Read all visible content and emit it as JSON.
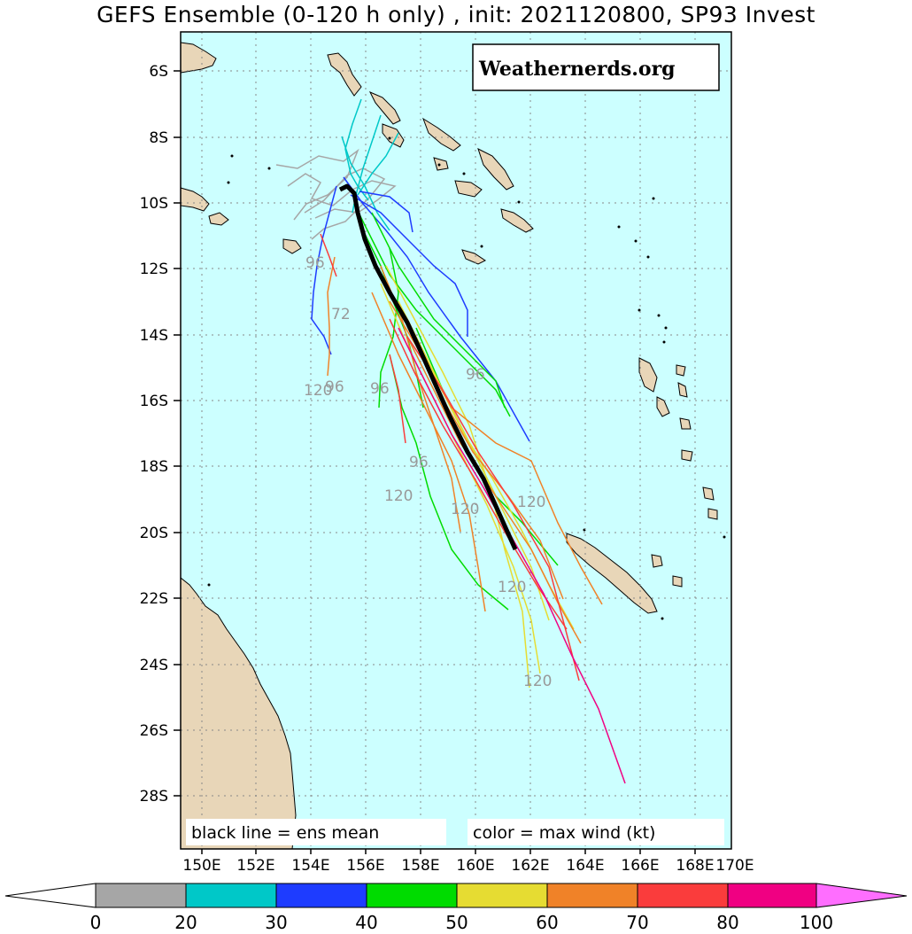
{
  "title": "GEFS Ensemble (0-120 h only) , init: 2021120800, SP93 Invest",
  "watermark": "Weathernerds.org",
  "legend": {
    "mean": "black line = ens mean",
    "color": "color = max wind (kt)"
  },
  "axes": {
    "lat_labels": [
      "6S",
      "8S",
      "10S",
      "12S",
      "14S",
      "16S",
      "18S",
      "20S",
      "22S",
      "24S",
      "26S",
      "28S"
    ],
    "lon_labels": [
      "150E",
      "152E",
      "154E",
      "156E",
      "158E",
      "160E",
      "162E",
      "164E",
      "166E",
      "168E",
      "170E"
    ]
  },
  "hour_labels": [
    "120",
    "96",
    "72",
    "96",
    "96",
    "96",
    "120",
    "120",
    "120",
    "120",
    "120",
    "96"
  ],
  "colorbar": {
    "ticks": [
      "0",
      "20",
      "30",
      "40",
      "50",
      "60",
      "70",
      "80",
      "100"
    ],
    "colors": [
      "#a6a6a6",
      "#00c8c8",
      "#1e3cff",
      "#00dc00",
      "#e6dc32",
      "#f08228",
      "#fa3c3c",
      "#f00082",
      "#ff6eff"
    ]
  },
  "colors": {
    "ocean": "#ccffff",
    "land": "#e8d6b8",
    "grid": "#888888",
    "mean_track": "#000000"
  }
}
